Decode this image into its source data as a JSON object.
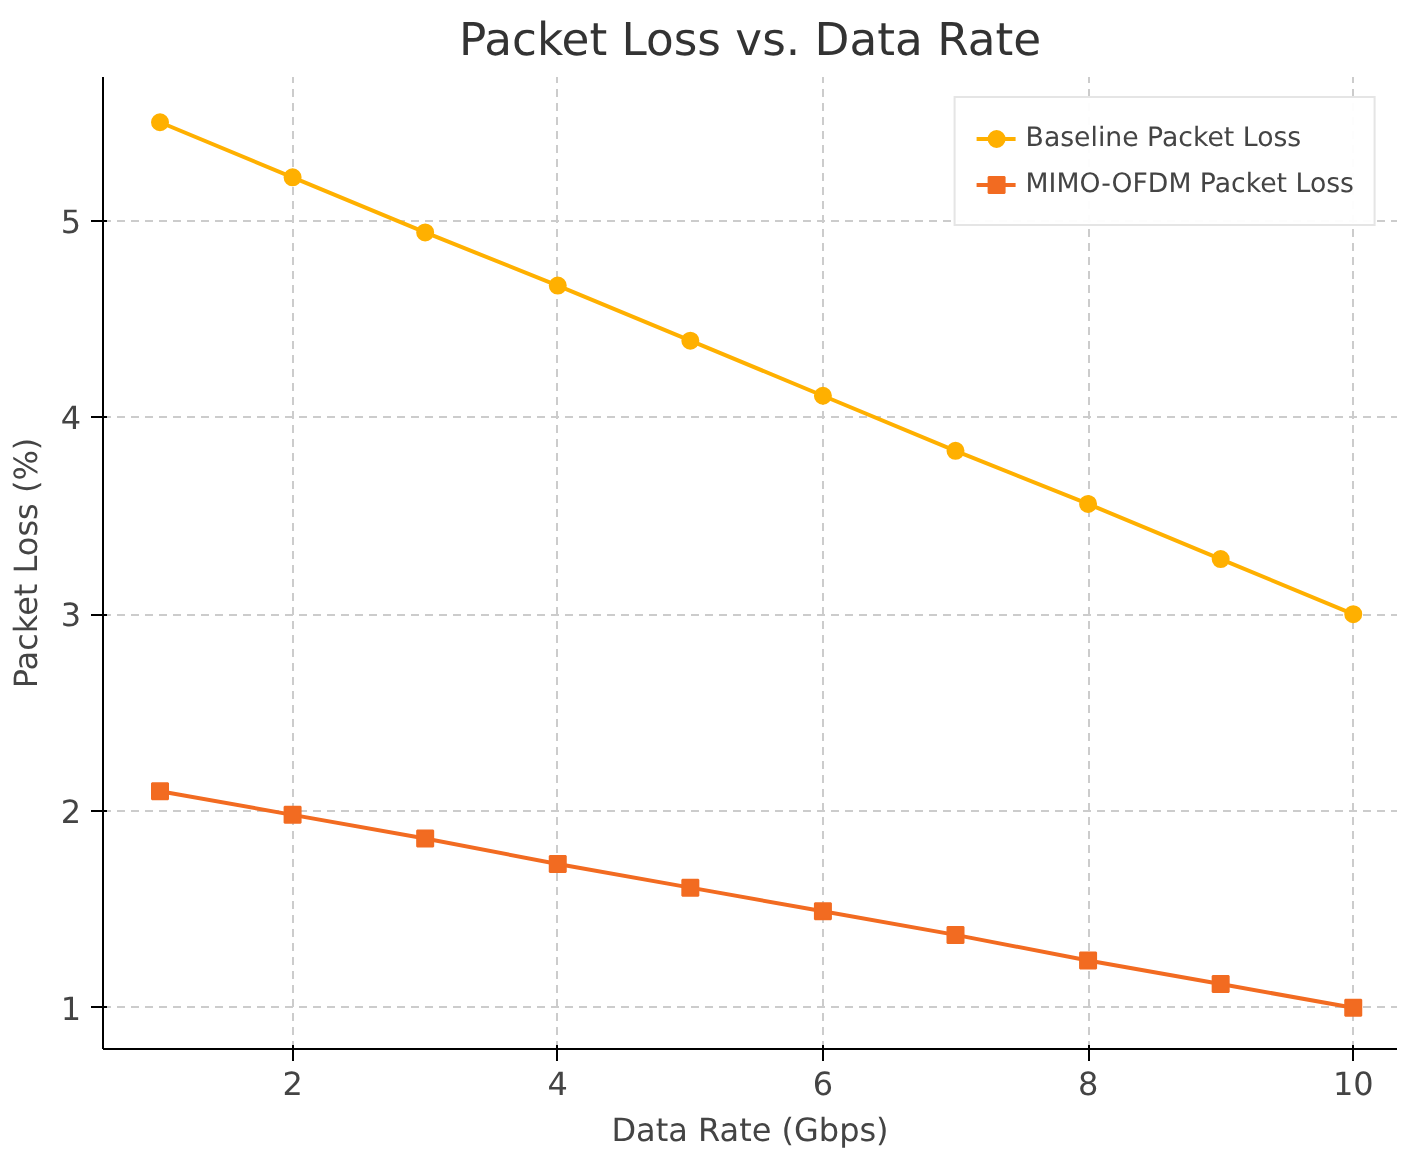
{
  "chart_data": {
    "type": "line",
    "title": "Packet Loss vs. Data Rate",
    "xlabel": "Data Rate (Gbps)",
    "ylabel": "Packet Loss (%)",
    "x": [
      1,
      2,
      3,
      4,
      5,
      6,
      7,
      8,
      9,
      10
    ],
    "series": [
      {
        "name": "Baseline Packet Loss",
        "color": "#ffb000",
        "marker": "circle",
        "values": [
          5.5,
          5.22,
          4.94,
          4.67,
          4.39,
          4.11,
          3.83,
          3.56,
          3.28,
          3.0
        ]
      },
      {
        "name": "MIMO-OFDM Packet Loss",
        "color": "#f26b21",
        "marker": "square",
        "values": [
          2.1,
          1.98,
          1.86,
          1.73,
          1.61,
          1.49,
          1.37,
          1.24,
          1.12,
          1.0
        ]
      }
    ],
    "xlim": [
      0.57,
      10.33
    ],
    "ylim": [
      0.79,
      5.73
    ],
    "xticks": [
      2,
      4,
      6,
      8,
      10
    ],
    "yticks": [
      1,
      2,
      3,
      4,
      5
    ],
    "grid": true,
    "legend": "top right",
    "line_style": "solid"
  }
}
